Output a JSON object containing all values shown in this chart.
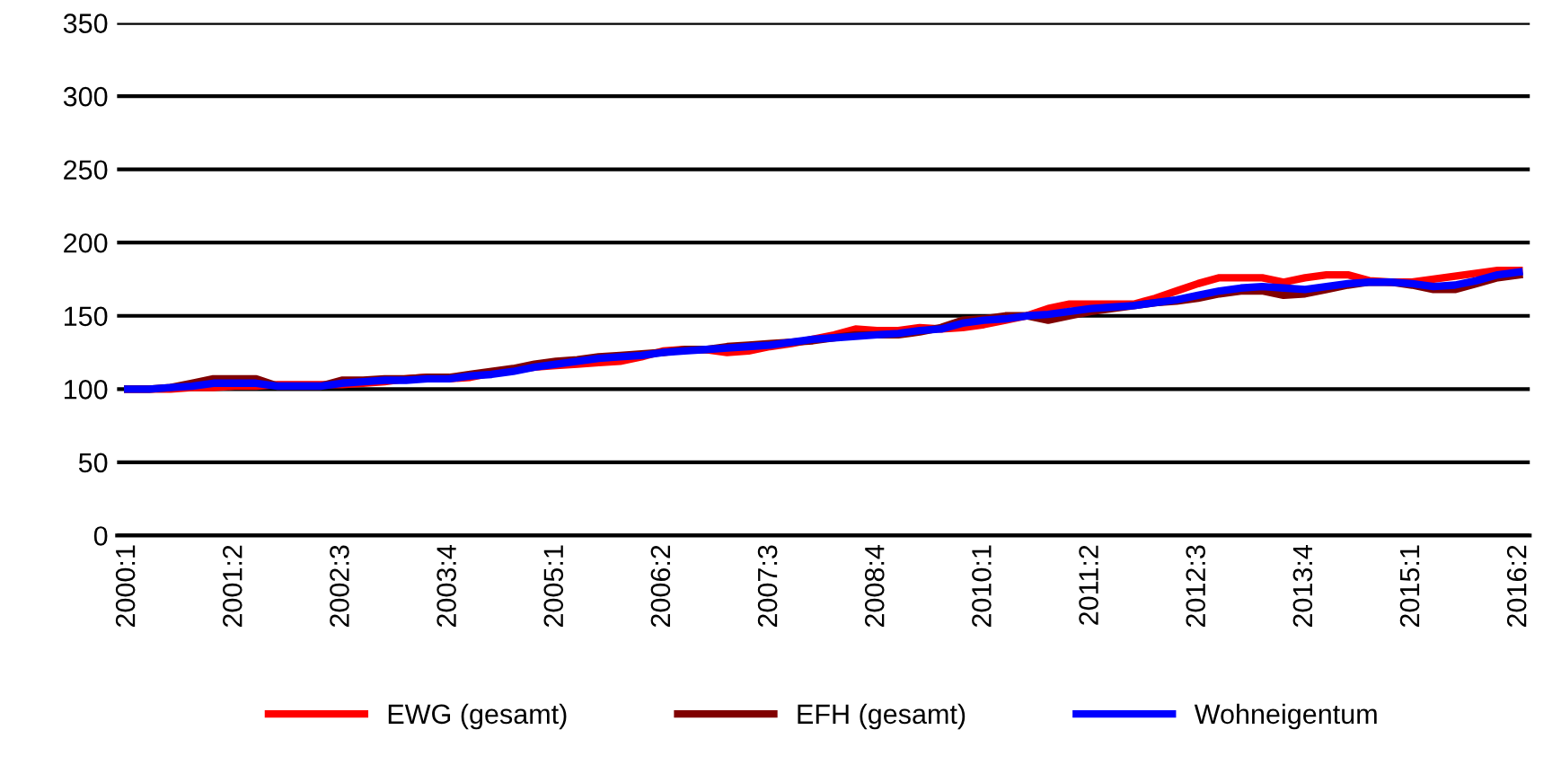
{
  "chart_data": {
    "type": "line",
    "categories": [
      "2000:1",
      null,
      null,
      null,
      null,
      "2001:2",
      null,
      null,
      null,
      null,
      "2002:3",
      null,
      null,
      null,
      null,
      "2003:4",
      null,
      null,
      null,
      null,
      "2005:1",
      null,
      null,
      null,
      null,
      "2006:2",
      null,
      null,
      null,
      null,
      "2007:3",
      null,
      null,
      null,
      null,
      "2008:4",
      null,
      null,
      null,
      null,
      "2010:1",
      null,
      null,
      null,
      null,
      "2011:2",
      null,
      null,
      null,
      null,
      "2012:3",
      null,
      null,
      null,
      null,
      "2013:4",
      null,
      null,
      null,
      null,
      "2015:1",
      null,
      null,
      null,
      null,
      "2016:2"
    ],
    "series": [
      {
        "name": "EWG (gesamt)",
        "color": "#ff0000",
        "values": [
          100,
          100,
          100,
          101,
          101,
          102,
          102,
          103,
          103,
          103,
          103,
          104,
          105,
          107,
          108,
          107,
          108,
          111,
          113,
          115,
          116,
          117,
          118,
          119,
          122,
          126,
          127,
          127,
          125,
          126,
          129,
          131,
          134,
          137,
          141,
          140,
          140,
          142,
          141,
          142,
          144,
          147,
          150,
          155,
          158,
          158,
          158,
          158,
          162,
          167,
          172,
          176,
          176,
          176,
          173,
          176,
          178,
          178,
          174,
          173,
          173,
          175,
          177,
          179,
          181,
          181
        ]
      },
      {
        "name": "EFH (gesamt)",
        "color": "#800000",
        "values": [
          100,
          100,
          101,
          104,
          107,
          107,
          107,
          102,
          102,
          102,
          106,
          106,
          107,
          107,
          108,
          108,
          110,
          112,
          114,
          117,
          119,
          120,
          122,
          123,
          124,
          125,
          127,
          127,
          129,
          130,
          131,
          132,
          133,
          135,
          137,
          137,
          137,
          139,
          142,
          147,
          148,
          150,
          150,
          147,
          150,
          153,
          155,
          157,
          159,
          160,
          162,
          165,
          167,
          167,
          164,
          165,
          168,
          171,
          173,
          173,
          171,
          168,
          168,
          172,
          176,
          178
        ]
      },
      {
        "name": "Wohneigentum",
        "color": "#0000ff",
        "values": [
          100,
          100,
          101,
          102,
          104,
          104,
          104,
          102,
          102,
          102,
          104,
          105,
          106,
          106,
          107,
          107,
          109,
          110,
          112,
          115,
          117,
          119,
          121,
          122,
          123,
          125,
          126,
          127,
          128,
          129,
          130,
          132,
          134,
          135,
          136,
          137,
          138,
          140,
          141,
          145,
          147,
          148,
          150,
          151,
          153,
          155,
          156,
          157,
          159,
          161,
          164,
          167,
          169,
          170,
          169,
          168,
          170,
          172,
          173,
          173,
          172,
          170,
          171,
          174,
          178,
          180
        ]
      }
    ],
    "ylim": [
      0,
      350
    ],
    "yticks": [
      0,
      50,
      100,
      150,
      200,
      250,
      300,
      350
    ],
    "grid": "y",
    "legend": "bottom",
    "marker": "none",
    "line_style": "solid"
  }
}
